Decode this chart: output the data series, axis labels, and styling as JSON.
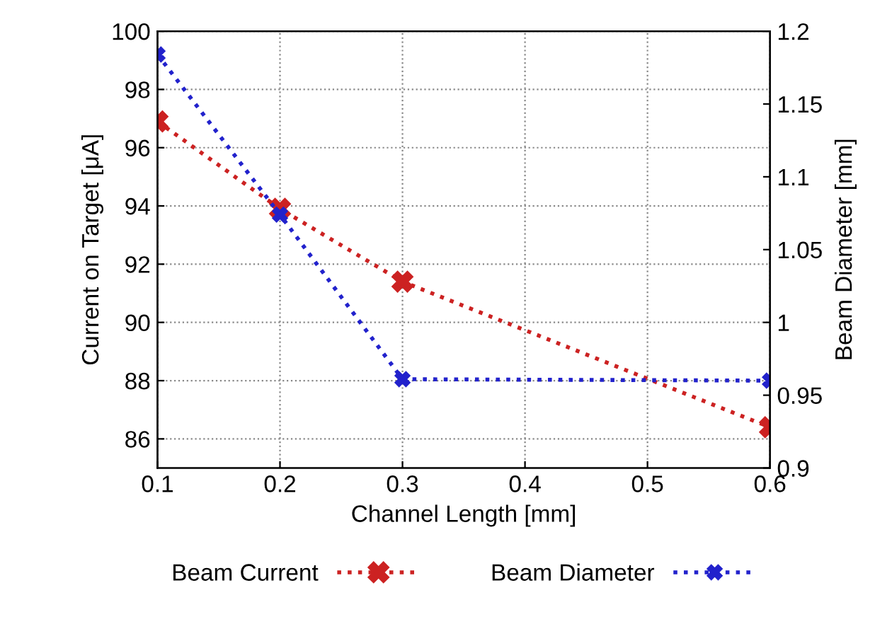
{
  "chart_data": {
    "type": "line",
    "xlabel": "Channel Length [mm]",
    "ylabel": "Current on Target [μA]",
    "y2label": "Beam Diameter [mm]",
    "x": [
      0.1,
      0.2,
      0.3,
      0.6
    ],
    "series": [
      {
        "name": "Beam Current",
        "color": "#cc2222",
        "values": [
          96.9,
          93.9,
          91.4,
          86.4
        ]
      },
      {
        "name": "Beam Diameter",
        "color": "#2222cc",
        "axis": "y2",
        "values": [
          1.184,
          1.074,
          0.961,
          0.96
        ]
      }
    ],
    "xlim": [
      0.1,
      0.6
    ],
    "xticks": [
      0.1,
      0.2,
      0.3,
      0.4,
      0.5,
      0.6
    ],
    "ylim": [
      85,
      100
    ],
    "yticks": [
      86,
      88,
      90,
      92,
      94,
      96,
      98,
      100
    ],
    "y2lim": [
      0.9,
      1.2
    ],
    "y2ticks": [
      0.9,
      0.95,
      1,
      1.05,
      1.1,
      1.15,
      1.2
    ],
    "grid": true,
    "legend": "bottom",
    "marker": "cross",
    "line_style": "dotted"
  }
}
